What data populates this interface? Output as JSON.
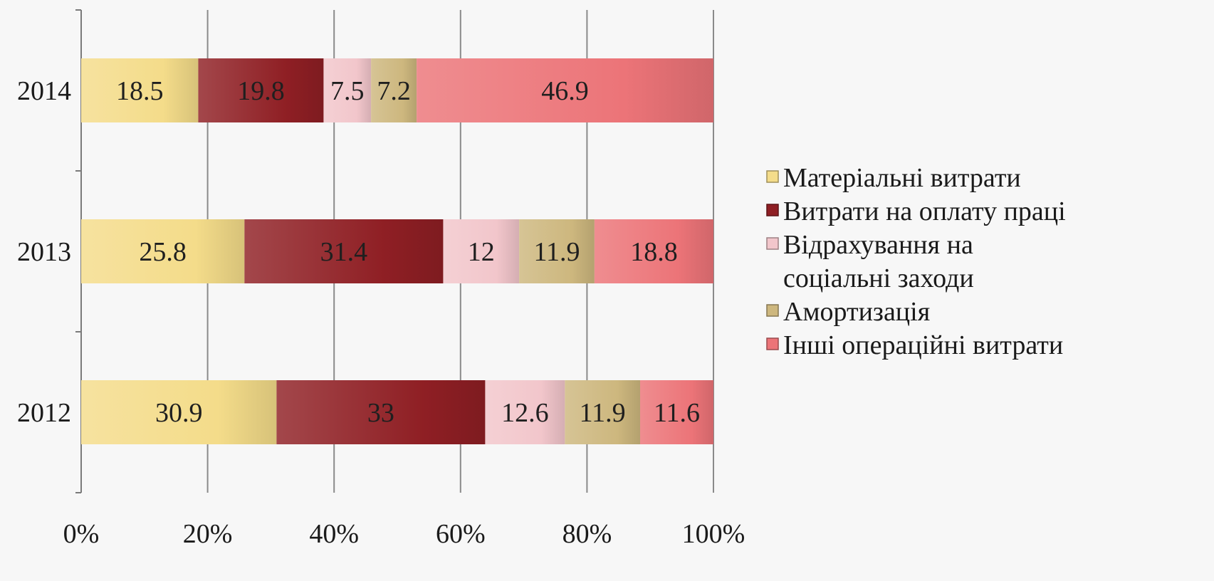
{
  "chart_data": {
    "type": "bar",
    "orientation": "horizontal",
    "stacked": "percent",
    "categories": [
      "2014",
      "2013",
      "2012"
    ],
    "series": [
      {
        "name": "Матеріальні витрати",
        "values": [
          18.5,
          25.8,
          30.9
        ],
        "color": "#f4dc8a"
      },
      {
        "name": "Витрати на оплату праці",
        "values": [
          19.8,
          31.4,
          33
        ],
        "color": "#8f1f24"
      },
      {
        "name": "Відрахування на соціальні заходи",
        "values": [
          7.5,
          12,
          12.6
        ],
        "color": "#f2c6cb"
      },
      {
        "name": "Амортизація",
        "values": [
          7.2,
          11.9,
          11.9
        ],
        "color": "#cdb77e"
      },
      {
        "name": "Інші операційні витрати",
        "values": [
          46.9,
          18.8,
          11.6
        ],
        "color": "#ec7478"
      }
    ],
    "data_labels": [
      [
        "18.5",
        "19.8",
        "7.5",
        "7.2",
        "46.9"
      ],
      [
        "25.8",
        "31.4",
        "12",
        "11.9",
        "18.8"
      ],
      [
        "30.9",
        "33",
        "12.6",
        "11.9",
        "11.6"
      ]
    ],
    "x_ticks": [
      "0%",
      "20%",
      "40%",
      "60%",
      "80%",
      "100%"
    ],
    "xlim": [
      0,
      100
    ],
    "grid": true,
    "legend_position": "right",
    "legend_lines": [
      [
        "Матеріальні витрати"
      ],
      [
        "Витрати на оплату праці"
      ],
      [
        "Відрахування на",
        "соціальні заходи"
      ],
      [
        "Амортизація"
      ],
      [
        "Інші операційні витрати"
      ]
    ],
    "title": "",
    "xlabel": "",
    "ylabel": ""
  }
}
